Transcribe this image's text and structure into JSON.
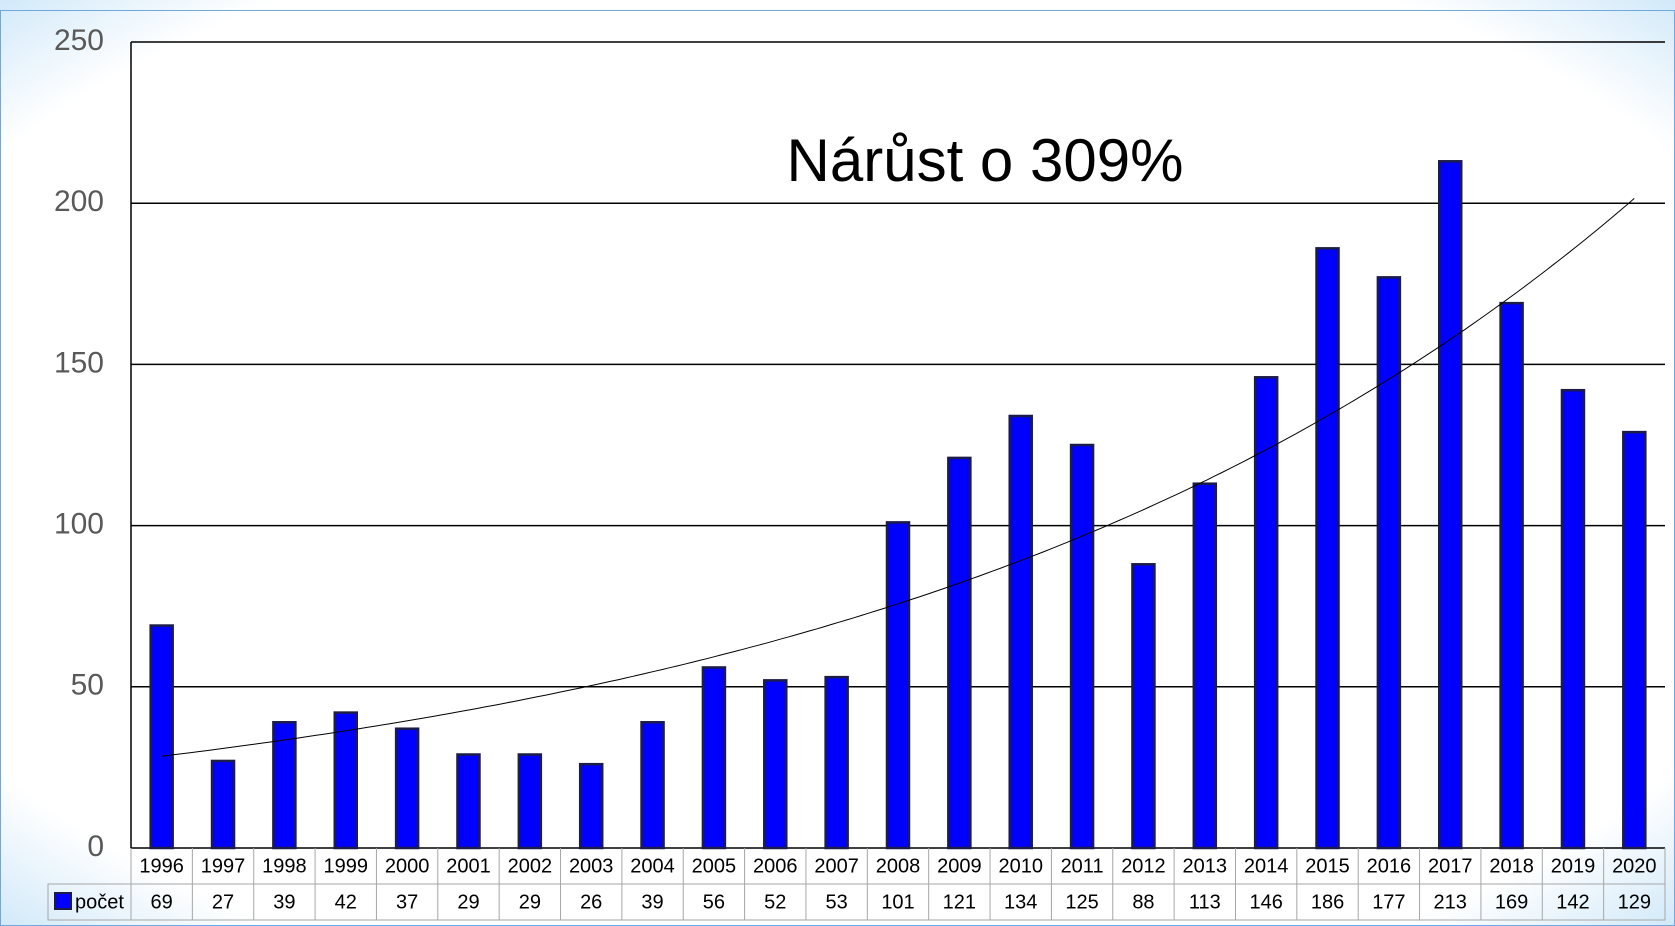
{
  "chart_data": {
    "type": "bar",
    "annotation": "Nárůst o 309%",
    "categories": [
      "1996",
      "1997",
      "1998",
      "1999",
      "2000",
      "2001",
      "2002",
      "2003",
      "2004",
      "2005",
      "2006",
      "2007",
      "2008",
      "2009",
      "2010",
      "2011",
      "2012",
      "2013",
      "2014",
      "2015",
      "2016",
      "2017",
      "2018",
      "2019",
      "2020"
    ],
    "series": [
      {
        "name": "počet",
        "color": "#0000ff",
        "values": [
          69,
          27,
          39,
          42,
          37,
          29,
          29,
          26,
          39,
          56,
          52,
          53,
          101,
          121,
          134,
          125,
          88,
          113,
          146,
          186,
          177,
          213,
          169,
          142,
          129
        ]
      }
    ],
    "ylim": [
      0,
      250
    ],
    "yticks": [
      0,
      50,
      100,
      150,
      200,
      250
    ],
    "grid": true,
    "trendline": "exponential",
    "data_table": true
  }
}
